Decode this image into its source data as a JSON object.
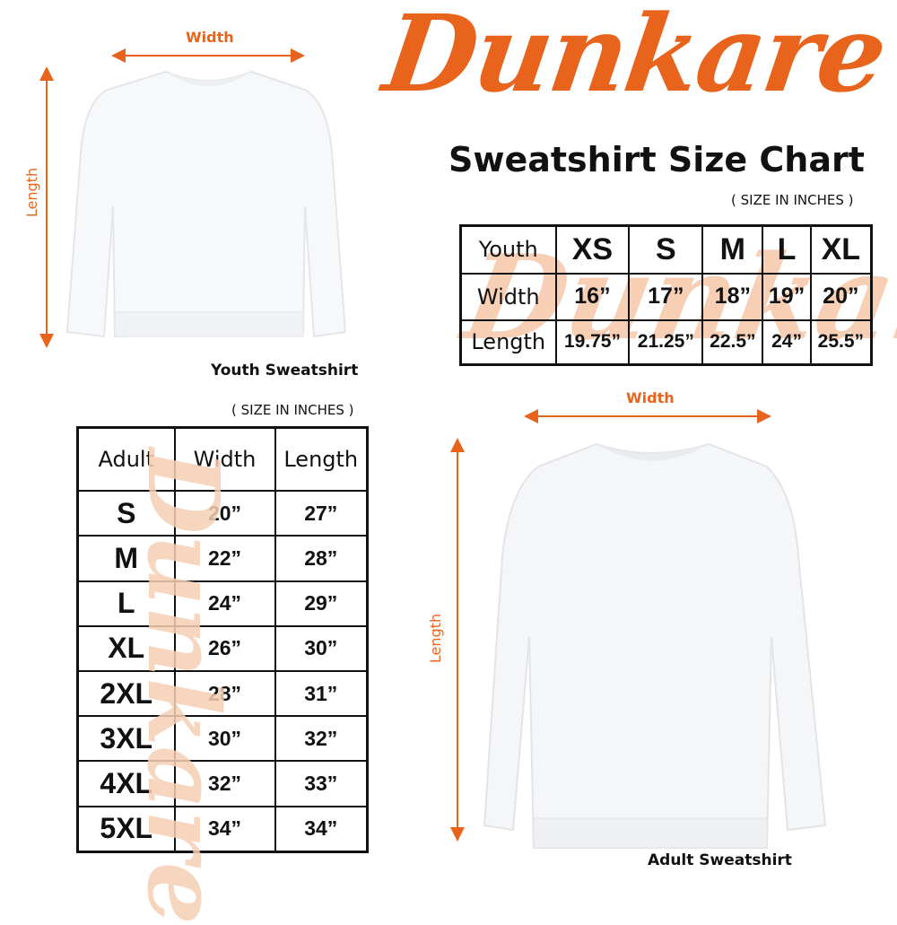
{
  "brand": {
    "logo_text": "Dunkare",
    "color": "#e8641c",
    "watermark_color": "#f6cfb5"
  },
  "title": "Sweatshirt Size Chart",
  "youth": {
    "width_label": "Width",
    "length_label": "Length",
    "caption": "Youth Sweatshirt",
    "units_note": "( SIZE IN INCHES )",
    "table": {
      "header": [
        "Youth",
        "XS",
        "S",
        "M",
        "L",
        "XL"
      ],
      "rows": [
        [
          "Width",
          "16”",
          "17”",
          "18”",
          "19”",
          "20”"
        ],
        [
          "Length",
          "19.75”",
          "21.25”",
          "22.5”",
          "24”",
          "25.5”"
        ]
      ]
    }
  },
  "adult": {
    "width_label": "Width",
    "length_label": "Length",
    "caption": "Adult Sweatshirt",
    "units_note": "( SIZE IN INCHES )",
    "table": {
      "header": [
        "Adult",
        "Width",
        "Length"
      ],
      "rows": [
        [
          "S",
          "20”",
          "27”"
        ],
        [
          "M",
          "22”",
          "28”"
        ],
        [
          "L",
          "24”",
          "29”"
        ],
        [
          "XL",
          "26”",
          "30”"
        ],
        [
          "2XL",
          "28”",
          "31”"
        ],
        [
          "3XL",
          "30”",
          "32”"
        ],
        [
          "4XL",
          "32”",
          "33”"
        ],
        [
          "5XL",
          "34”",
          "34”"
        ]
      ]
    }
  }
}
